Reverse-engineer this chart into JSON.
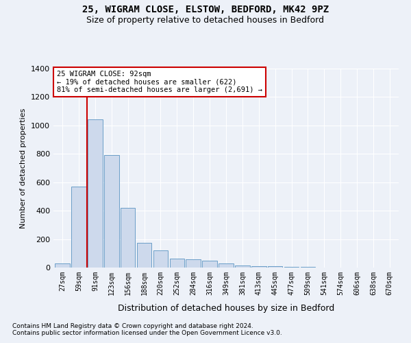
{
  "title1": "25, WIGRAM CLOSE, ELSTOW, BEDFORD, MK42 9PZ",
  "title2": "Size of property relative to detached houses in Bedford",
  "xlabel": "Distribution of detached houses by size in Bedford",
  "ylabel": "Number of detached properties",
  "categories": [
    "27sqm",
    "59sqm",
    "91sqm",
    "123sqm",
    "156sqm",
    "188sqm",
    "220sqm",
    "252sqm",
    "284sqm",
    "316sqm",
    "349sqm",
    "381sqm",
    "413sqm",
    "445sqm",
    "477sqm",
    "509sqm",
    "541sqm",
    "574sqm",
    "606sqm",
    "638sqm",
    "670sqm"
  ],
  "values": [
    30,
    570,
    1045,
    790,
    420,
    175,
    120,
    65,
    60,
    50,
    30,
    15,
    10,
    10,
    5,
    3,
    2,
    1,
    0,
    0,
    0
  ],
  "bar_color": "#cdd9ec",
  "bar_edge_color": "#6b9ec8",
  "vline_color": "#cc0000",
  "annotation_text": "25 WIGRAM CLOSE: 92sqm\n← 19% of detached houses are smaller (622)\n81% of semi-detached houses are larger (2,691) →",
  "annotation_box_color": "#ffffff",
  "annotation_box_edge": "#cc0000",
  "ylim": [
    0,
    1400
  ],
  "yticks": [
    0,
    200,
    400,
    600,
    800,
    1000,
    1200,
    1400
  ],
  "footnote1": "Contains HM Land Registry data © Crown copyright and database right 2024.",
  "footnote2": "Contains public sector information licensed under the Open Government Licence v3.0.",
  "bg_color": "#edf1f8",
  "grid_color": "#ffffff",
  "title1_fontsize": 10,
  "title2_fontsize": 9
}
